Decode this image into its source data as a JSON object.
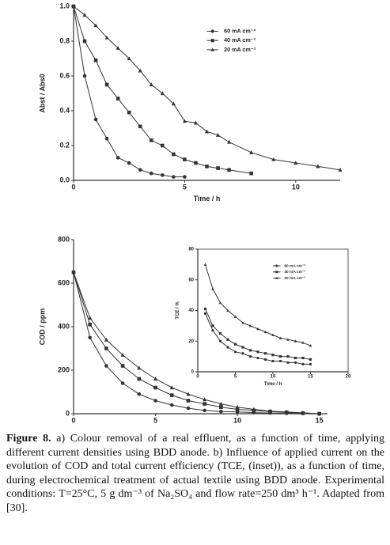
{
  "chart_data": [
    {
      "type": "scatter",
      "x_label": "Time / h",
      "y_label": "Abst / Abs0",
      "xlim": [
        0,
        12
      ],
      "ylim": [
        0,
        1
      ],
      "xticks": [
        0,
        5,
        10
      ],
      "yticks": [
        {
          "value": 0,
          "label": "0.0"
        },
        {
          "value": 0.2,
          "label": "0.2"
        },
        {
          "value": 0.4,
          "label": "0.4"
        },
        {
          "value": 0.6,
          "label": "0.6"
        },
        {
          "value": 0.8,
          "label": "0.8"
        },
        {
          "value": 1,
          "label": "1.0"
        }
      ],
      "legend": "upper right",
      "series": [
        {
          "name": "60 mA cm⁻²",
          "color": "#333333",
          "marker": "circle",
          "x": [
            0,
            0.5,
            1,
            1.5,
            2,
            2.5,
            3,
            3.5,
            4,
            4.5,
            5
          ],
          "values": [
            1.0,
            0.6,
            0.35,
            0.24,
            0.13,
            0.1,
            0.06,
            0.04,
            0.03,
            0.02,
            0.02
          ]
        },
        {
          "name": "40 mA cm⁻²",
          "color": "#333333",
          "marker": "square",
          "x": [
            0,
            0.5,
            1,
            1.5,
            2,
            2.5,
            3,
            3.5,
            4,
            4.5,
            5,
            5.5,
            6,
            6.5,
            7,
            8
          ],
          "values": [
            1.0,
            0.8,
            0.69,
            0.55,
            0.47,
            0.39,
            0.31,
            0.23,
            0.2,
            0.15,
            0.12,
            0.1,
            0.08,
            0.07,
            0.06,
            0.04
          ]
        },
        {
          "name": "20 mA cm⁻²",
          "color": "#333333",
          "marker": "triangle",
          "x": [
            0,
            0.5,
            1,
            1.5,
            2,
            2.5,
            3,
            3.5,
            4,
            4.5,
            5,
            5.5,
            6,
            6.5,
            7,
            8,
            9,
            10,
            11,
            12
          ],
          "values": [
            1.0,
            0.95,
            0.89,
            0.82,
            0.76,
            0.7,
            0.63,
            0.55,
            0.5,
            0.44,
            0.34,
            0.33,
            0.28,
            0.26,
            0.22,
            0.16,
            0.12,
            0.1,
            0.08,
            0.06
          ]
        }
      ]
    },
    {
      "type": "scatter",
      "x_label": "Time / h",
      "y_label": "COD / ppm",
      "xlim": [
        0,
        15.5
      ],
      "ylim": [
        0,
        800
      ],
      "xticks": [
        0,
        5,
        10,
        15
      ],
      "yticks": [
        0,
        200,
        400,
        600,
        800
      ],
      "series": [
        {
          "name": "60 mA cm⁻²",
          "color": "#333333",
          "marker": "circle",
          "x": [
            0,
            1,
            2,
            3,
            4,
            5,
            6,
            7,
            8,
            9,
            10,
            11,
            12,
            13,
            14,
            15
          ],
          "values": [
            650,
            350,
            220,
            140,
            90,
            60,
            40,
            25,
            15,
            10,
            8,
            5,
            3,
            2,
            1,
            0
          ]
        },
        {
          "name": "40 mA cm⁻²",
          "color": "#333333",
          "marker": "square",
          "x": [
            0,
            1,
            2,
            3,
            4,
            5,
            6,
            7,
            8,
            9,
            10,
            11,
            12,
            13,
            14,
            15
          ],
          "values": [
            650,
            410,
            300,
            220,
            160,
            120,
            85,
            60,
            45,
            30,
            20,
            15,
            10,
            6,
            3,
            0
          ]
        },
        {
          "name": "20 mA cm⁻²",
          "color": "#333333",
          "marker": "triangle",
          "x": [
            0,
            1,
            2,
            3,
            4,
            5,
            6,
            7,
            8,
            9,
            10,
            11,
            12,
            13,
            14,
            15
          ],
          "values": [
            650,
            440,
            340,
            270,
            210,
            160,
            120,
            90,
            65,
            45,
            30,
            20,
            12,
            8,
            4,
            0
          ]
        }
      ]
    },
    {
      "type": "scatter",
      "x_label": "Time / h",
      "y_label": "TCE / %",
      "xlim": [
        0,
        20
      ],
      "ylim": [
        0,
        80
      ],
      "xticks": [
        0,
        5,
        10,
        15,
        20
      ],
      "yticks": [
        0,
        20,
        40,
        60,
        80
      ],
      "legend": "upper right",
      "frame": true,
      "series": [
        {
          "name": "60 mA cm⁻²",
          "color": "#333333",
          "marker": "circle",
          "x": [
            1,
            2,
            3,
            4,
            5,
            6,
            7,
            8,
            9,
            10,
            11,
            12,
            13,
            14,
            15
          ],
          "values": [
            38,
            27,
            20,
            16,
            13,
            12,
            10,
            9,
            8,
            7,
            7,
            6,
            6,
            5,
            5
          ]
        },
        {
          "name": "40 mA cm⁻²",
          "color": "#333333",
          "marker": "square",
          "x": [
            1,
            2,
            3,
            4,
            5,
            6,
            7,
            8,
            9,
            10,
            11,
            12,
            13,
            14,
            15
          ],
          "values": [
            41,
            30,
            25,
            21,
            18,
            16,
            14,
            13,
            12,
            11,
            10,
            10,
            9,
            9,
            8
          ]
        },
        {
          "name": "20 mA cm⁻²",
          "color": "#333333",
          "marker": "triangle",
          "x": [
            1,
            2,
            3,
            4,
            5,
            6,
            7,
            8,
            9,
            10,
            11,
            12,
            13,
            14,
            15
          ],
          "values": [
            70,
            54,
            45,
            40,
            36,
            32,
            30,
            28,
            26,
            24,
            22,
            21,
            20,
            19,
            17
          ]
        }
      ]
    }
  ],
  "caption": {
    "label": "Figure 8.",
    "text": "a) Colour removal of a real effluent, as a function of time, applying different current densities using BDD anode. b) Influence of applied current on the evolution of COD and total current efficiency (TCE, (inset)), as a function of time, during electrochemical treatment of actual textile using BDD anode. Experimental conditions: T=25°C, 5 g dm⁻³ of Na₂SO₄ and flow rate=250 dm³ h⁻¹. Adapted from [30]."
  }
}
